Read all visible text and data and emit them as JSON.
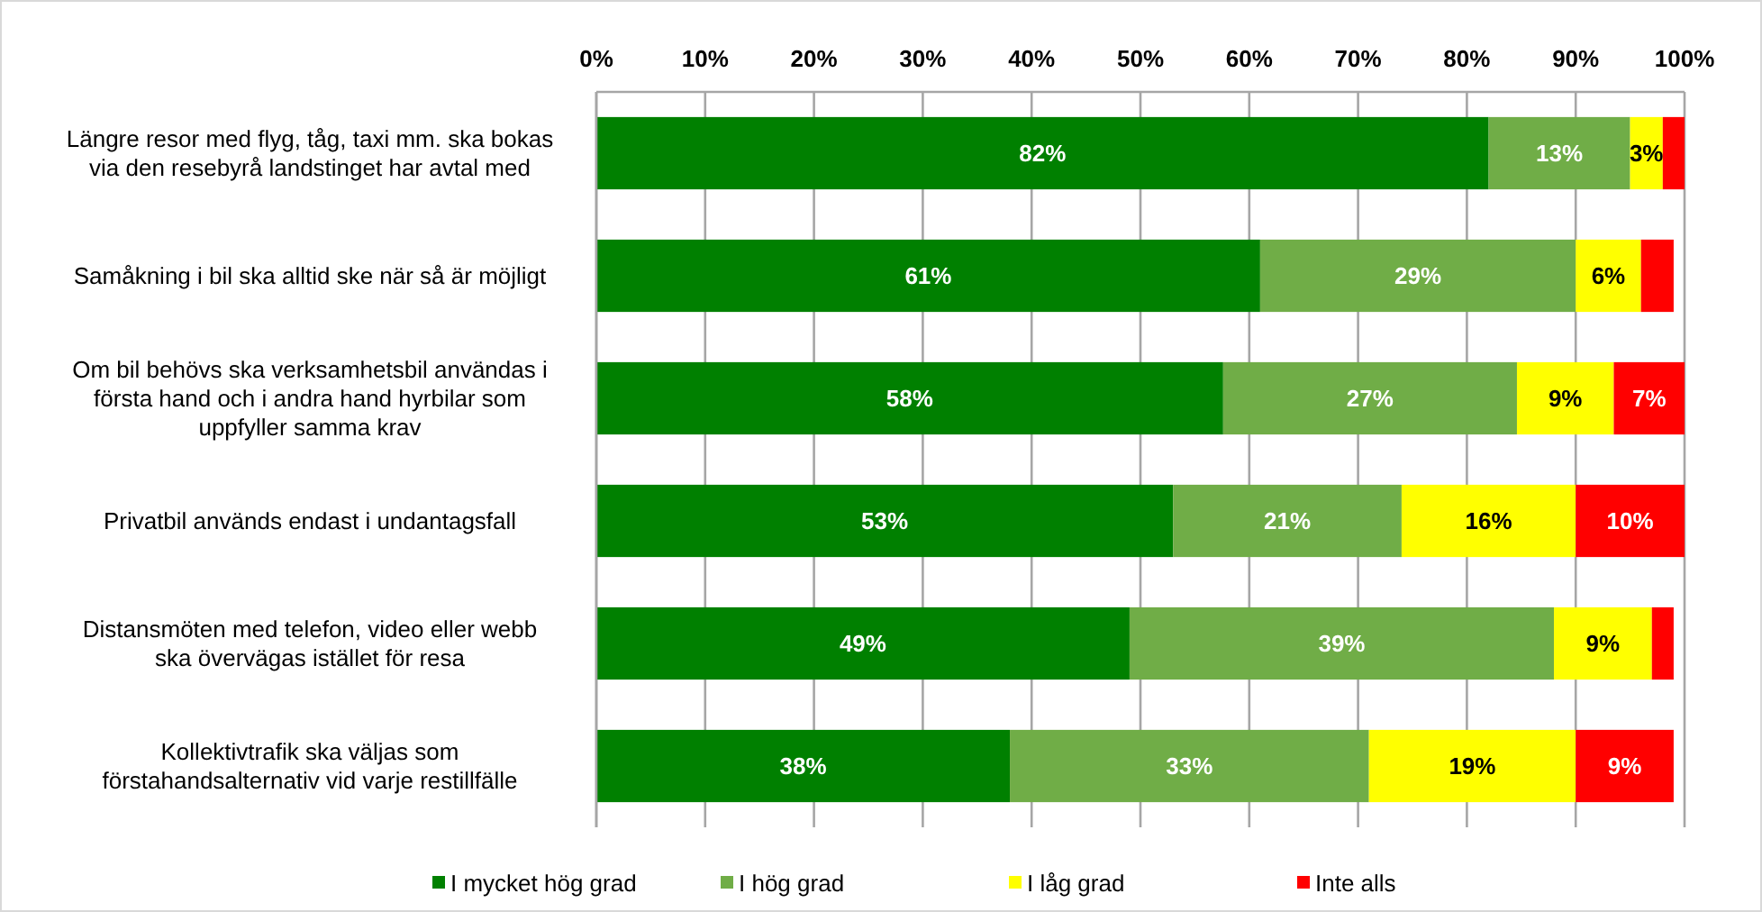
{
  "chart_data": {
    "type": "bar",
    "orientation": "horizontal",
    "stacked": true,
    "categories": [
      "Längre resor med flyg, tåg, taxi mm. ska bokas\nvia den resebyrå landstinget har avtal med",
      "Samåkning i bil ska alltid ske när så är möjligt",
      "Om bil behövs ska verksamhetsbil användas i\nförsta hand och i andra hand hyrbilar som\nuppfyller samma krav",
      "Privatbil används endast i undantagsfall",
      "Distansmöten med telefon, video eller webb\nska övervägas istället för resa",
      "Kollektivtrafik ska väljas som\nförstahandsalternativ vid varje restillfälle"
    ],
    "series": [
      {
        "name": "I mycket hög grad",
        "color": "#008000",
        "values": [
          82,
          61,
          57.6,
          53,
          49,
          38
        ],
        "value_labels": [
          "82%",
          "61%",
          "58%",
          "53%",
          "49%",
          "38%"
        ]
      },
      {
        "name": "I hög grad",
        "color": "#70ad47",
        "values": [
          13,
          29,
          27,
          21,
          39,
          33
        ],
        "value_labels": [
          "13%",
          "29%",
          "27%",
          "21%",
          "39%",
          "33%"
        ]
      },
      {
        "name": "I låg grad",
        "color": "#ffff00",
        "values": [
          3,
          6,
          8.9,
          16,
          9,
          19
        ],
        "value_labels": [
          "3%",
          "6%",
          "9%",
          "16%",
          "9%",
          "19%"
        ]
      },
      {
        "name": "Inte alls",
        "color": "#ff0000",
        "values": [
          2,
          3,
          6.5,
          10,
          2,
          9
        ],
        "value_labels": [
          null,
          null,
          "7%",
          "10%",
          null,
          "9%"
        ]
      }
    ],
    "xlim": [
      0,
      100
    ],
    "xticks": [
      {
        "value": 0,
        "label": "0%"
      },
      {
        "value": 10,
        "label": "10%"
      },
      {
        "value": 20,
        "label": "20%"
      },
      {
        "value": 30,
        "label": "30%"
      },
      {
        "value": 40,
        "label": "40%"
      },
      {
        "value": 50,
        "label": "50%"
      },
      {
        "value": 60,
        "label": "60%"
      },
      {
        "value": 70,
        "label": "70%"
      },
      {
        "value": 80,
        "label": "80%"
      },
      {
        "value": 90,
        "label": "90%"
      },
      {
        "value": 100,
        "label": "100%"
      }
    ],
    "grid": "x",
    "legend": "bottom"
  }
}
